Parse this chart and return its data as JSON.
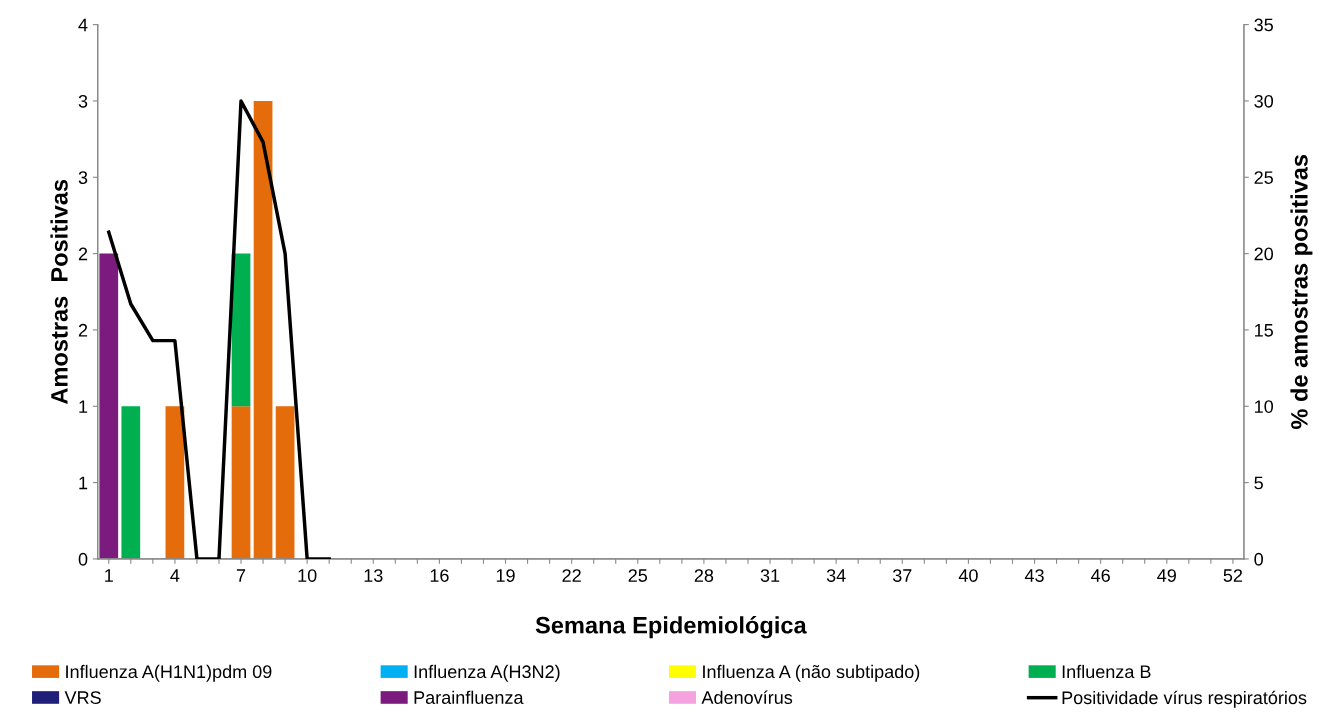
{
  "chart_data": {
    "type": "bar",
    "stacked": true,
    "xlabel": "Semana Epidemiológica",
    "ylabel": "Amostras  Positivas",
    "y2label": "% de amostras positivas",
    "categories": [
      "1",
      null,
      null,
      "4",
      null,
      null,
      "7",
      null,
      null,
      "10",
      null,
      null,
      "13",
      null,
      null,
      "16",
      null,
      null,
      "19",
      null,
      null,
      "22",
      null,
      null,
      "25",
      null,
      null,
      "28",
      null,
      null,
      "31",
      null,
      null,
      "34",
      null,
      null,
      "37",
      null,
      null,
      "40",
      null,
      null,
      "43",
      null,
      null,
      "46",
      null,
      null,
      "49",
      null,
      null,
      "52"
    ],
    "series": [
      {
        "name": "Influenza A(H1N1)pdm 09",
        "color": "#e46c0a",
        "values": [
          0,
          0,
          0,
          1,
          0,
          0,
          1,
          3,
          1,
          0,
          0,
          null,
          null,
          null,
          null,
          null,
          null,
          null,
          null,
          null,
          null,
          null,
          null,
          null,
          null,
          null,
          null,
          null,
          null,
          null,
          null,
          null,
          null,
          null,
          null,
          null,
          null,
          null,
          null,
          null,
          null,
          null,
          null,
          null,
          null,
          null,
          null,
          null,
          null,
          null,
          null,
          null
        ]
      },
      {
        "name": "Influenza A(H3N2)",
        "color": "#00b0f0",
        "values": [
          0,
          0,
          0,
          0,
          0,
          0,
          0,
          0,
          0,
          0,
          0,
          null,
          null,
          null,
          null,
          null,
          null,
          null,
          null,
          null,
          null,
          null,
          null,
          null,
          null,
          null,
          null,
          null,
          null,
          null,
          null,
          null,
          null,
          null,
          null,
          null,
          null,
          null,
          null,
          null,
          null,
          null,
          null,
          null,
          null,
          null,
          null,
          null,
          null,
          null,
          null,
          null
        ]
      },
      {
        "name": "Influenza A (não subtipado)",
        "color": "#ffff00",
        "values": [
          0,
          0,
          0,
          0,
          0,
          0,
          0,
          0,
          0,
          0,
          0,
          null,
          null,
          null,
          null,
          null,
          null,
          null,
          null,
          null,
          null,
          null,
          null,
          null,
          null,
          null,
          null,
          null,
          null,
          null,
          null,
          null,
          null,
          null,
          null,
          null,
          null,
          null,
          null,
          null,
          null,
          null,
          null,
          null,
          null,
          null,
          null,
          null,
          null,
          null,
          null,
          null
        ]
      },
      {
        "name": "Influenza B",
        "color": "#00b050",
        "values": [
          0,
          1,
          0,
          0,
          0,
          0,
          1,
          0,
          0,
          0,
          0,
          null,
          null,
          null,
          null,
          null,
          null,
          null,
          null,
          null,
          null,
          null,
          null,
          null,
          null,
          null,
          null,
          null,
          null,
          null,
          null,
          null,
          null,
          null,
          null,
          null,
          null,
          null,
          null,
          null,
          null,
          null,
          null,
          null,
          null,
          null,
          null,
          null,
          null,
          null,
          null,
          null
        ]
      },
      {
        "name": "VRS",
        "color": "#1f1f7a",
        "values": [
          0,
          0,
          0,
          0,
          0,
          0,
          0,
          0,
          0,
          0,
          0,
          null,
          null,
          null,
          null,
          null,
          null,
          null,
          null,
          null,
          null,
          null,
          null,
          null,
          null,
          null,
          null,
          null,
          null,
          null,
          null,
          null,
          null,
          null,
          null,
          null,
          null,
          null,
          null,
          null,
          null,
          null,
          null,
          null,
          null,
          null,
          null,
          null,
          null,
          null,
          null,
          null
        ]
      },
      {
        "name": "Parainfluenza",
        "color": "#7b1b7e",
        "values": [
          2,
          0,
          0,
          0,
          0,
          0,
          0,
          0,
          0,
          0,
          0,
          null,
          null,
          null,
          null,
          null,
          null,
          null,
          null,
          null,
          null,
          null,
          null,
          null,
          null,
          null,
          null,
          null,
          null,
          null,
          null,
          null,
          null,
          null,
          null,
          null,
          null,
          null,
          null,
          null,
          null,
          null,
          null,
          null,
          null,
          null,
          null,
          null,
          null,
          null,
          null,
          null
        ]
      },
      {
        "name": "Adenovírus",
        "color": "#f5a3e0",
        "values": [
          0,
          0,
          0,
          0,
          0,
          0,
          0,
          0,
          0,
          0,
          0,
          null,
          null,
          null,
          null,
          null,
          null,
          null,
          null,
          null,
          null,
          null,
          null,
          null,
          null,
          null,
          null,
          null,
          null,
          null,
          null,
          null,
          null,
          null,
          null,
          null,
          null,
          null,
          null,
          null,
          null,
          null,
          null,
          null,
          null,
          null,
          null,
          null,
          null,
          null,
          null,
          null
        ]
      },
      {
        "name": "Positividade vírus respiratórios",
        "color": "#000000",
        "type": "line",
        "axis": "y2",
        "values": [
          21.4,
          16.7,
          14.3,
          14.3,
          0,
          0,
          30,
          27.3,
          20,
          0,
          0,
          null,
          null,
          null,
          null,
          null,
          null,
          null,
          null,
          null,
          null,
          null,
          null,
          null,
          null,
          null,
          null,
          null,
          null,
          null,
          null,
          null,
          null,
          null,
          null,
          null,
          null,
          null,
          null,
          null,
          null,
          null,
          null,
          null,
          null,
          null,
          null,
          null,
          null,
          null,
          null,
          null
        ]
      }
    ],
    "ylim": [
      0,
      3.5
    ],
    "yticks": [
      0,
      {
        "value": 0.5,
        "label": "1"
      },
      1,
      {
        "value": 1.5,
        "label": "2"
      },
      2,
      {
        "value": 2.5,
        "label": "3"
      },
      3,
      {
        "value": 3.5,
        "label": "4"
      }
    ],
    "y2lim": [
      0,
      35
    ],
    "y2ticks": [
      0,
      5,
      10,
      15,
      20,
      25,
      30,
      35
    ],
    "grid": false,
    "legend": "bottom"
  }
}
